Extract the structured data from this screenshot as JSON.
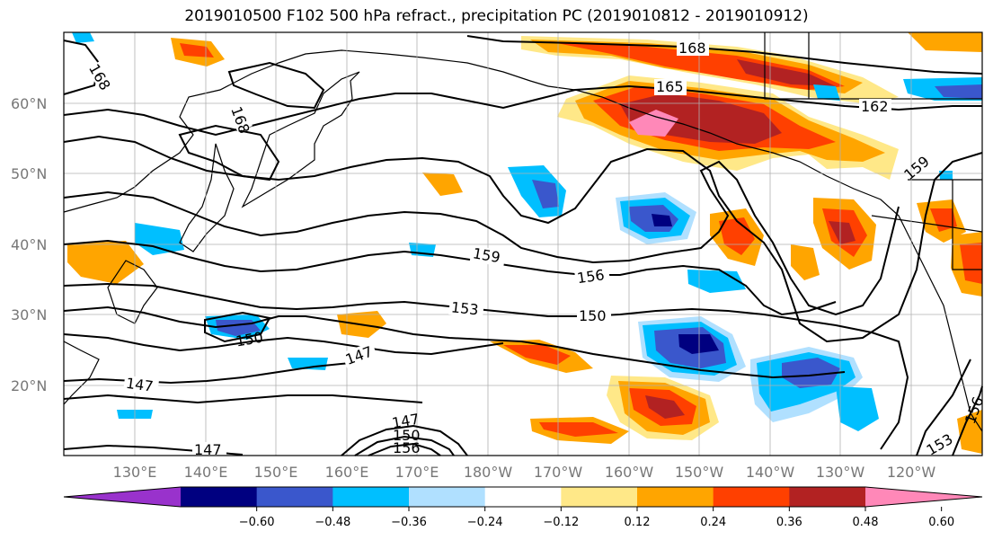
{
  "title": "2019010500 F102 500 hPa refract., precipitation PC (2019010812 - 2019010912)",
  "lat_labels": [
    "60°N",
    "50°N",
    "40°N",
    "30°N",
    "20°N"
  ],
  "lon_labels": [
    "130°E",
    "140°E",
    "150°E",
    "160°E",
    "170°E",
    "180°W",
    "170°W",
    "160°W",
    "150°W",
    "140°W",
    "130°W",
    "120°W"
  ],
  "contour_labels": [
    "168",
    "168",
    "168",
    "165",
    "162",
    "159",
    "159",
    "156",
    "153",
    "150",
    "150",
    "147",
    "147",
    "147",
    "150",
    "156",
    "147",
    "153",
    "156"
  ],
  "colorbar": {
    "colors": [
      "#9932cc",
      "#000080",
      "#3a57cc",
      "#00bfff",
      "#b0e0ff",
      "#ffffff",
      "#ffe888",
      "#ffa500",
      "#ff4000",
      "#b22222",
      "#ff88b8"
    ],
    "tick_labels": [
      "−0.60",
      "−0.48",
      "−0.36",
      "−0.24",
      "−0.12",
      "0.12",
      "0.24",
      "0.36",
      "0.48",
      "0.60"
    ]
  },
  "colors": {
    "blue_light": "#b0e0ff",
    "blue": "#00bfff",
    "blue_mid": "#3a57cc",
    "blue_dark": "#000080",
    "yellow": "#ffe888",
    "orange": "#ffa500",
    "red_orange": "#ff4000",
    "dark_red": "#b22222",
    "pink": "#ff88b8"
  }
}
